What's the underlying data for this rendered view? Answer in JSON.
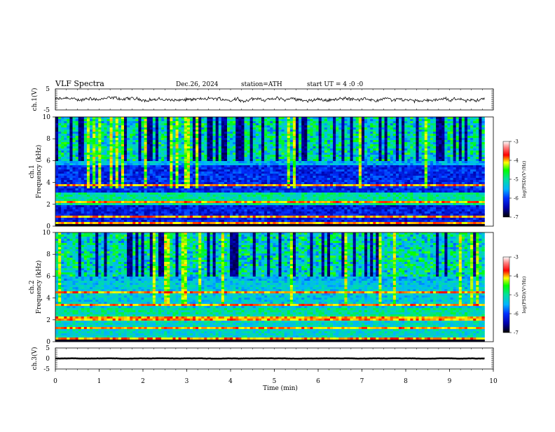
{
  "header": {
    "title": "VLF Spectra",
    "date": "Dec.26, 2024",
    "station": "station=ATH",
    "start": "start UT =  4 :0 :0"
  },
  "chart_data": [
    {
      "type": "line",
      "name": "ch1-waveform",
      "ylabel": "ch.1(V)",
      "ylim": [
        -5,
        5
      ],
      "yticks": [
        5,
        -5
      ],
      "xlim": [
        0,
        10
      ],
      "x_end": 9.8,
      "baseline": 0,
      "amplitude_range": [
        -1.5,
        1.5
      ]
    },
    {
      "type": "heatmap",
      "name": "ch1-spectrogram",
      "ylabel": "ch.1 Frequency (kHz)",
      "ylim": [
        0,
        10
      ],
      "yticks": [
        0,
        2,
        4,
        6,
        8,
        10
      ],
      "xlim": [
        0,
        10
      ],
      "x_end": 9.8,
      "colorbar": {
        "label": "log(PSD)(V²/Hz)",
        "range": [
          -7,
          -3
        ],
        "ticks": [
          -3,
          -4,
          -5,
          -6,
          -7
        ]
      }
    },
    {
      "type": "heatmap",
      "name": "ch2-spectrogram",
      "ylabel": "ch.2 Frequency (kHz)",
      "ylim": [
        0,
        10
      ],
      "yticks": [
        0,
        2,
        4,
        6,
        8,
        10
      ],
      "xlim": [
        0,
        10
      ],
      "x_end": 9.8,
      "colorbar": {
        "label": "log(PSD)(V²/Hz)",
        "range": [
          -7,
          -3
        ],
        "ticks": [
          -3,
          -4,
          -5,
          -6,
          -7
        ]
      }
    },
    {
      "type": "line",
      "name": "ch3-waveform",
      "ylabel": "ch.3(V)",
      "ylim": [
        -5,
        5
      ],
      "yticks": [
        5,
        0,
        -5
      ],
      "xlim": [
        0,
        10
      ],
      "x_end": 9.8,
      "baseline": 0,
      "amplitude_range": [
        -0.3,
        0.3
      ]
    }
  ],
  "x_axis": {
    "label": "Time (min)",
    "ticks": [
      0,
      1,
      2,
      3,
      4,
      5,
      6,
      7,
      8,
      9,
      10
    ]
  }
}
